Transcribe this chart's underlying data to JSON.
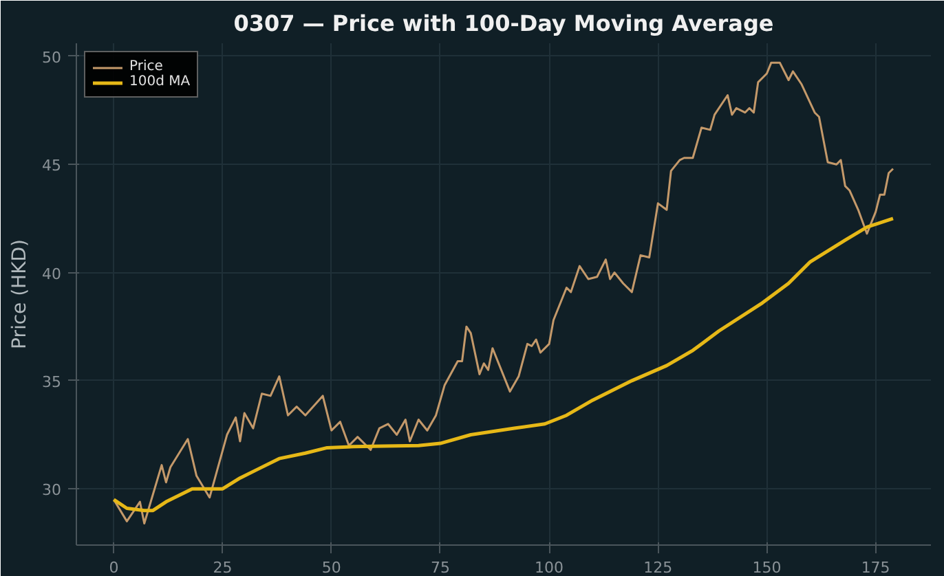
{
  "chart_data": {
    "type": "line",
    "title": "0307 — Price with 100-Day Moving Average",
    "ylabel": "Price (HKD)",
    "xlim": [
      -8.6,
      187.7
    ],
    "ylim": [
      27.4,
      50.6
    ],
    "xticks": [
      0,
      25,
      50,
      75,
      100,
      125,
      150,
      175
    ],
    "yticks": [
      30,
      35,
      40,
      45,
      50
    ],
    "grid": true,
    "legend": "top left",
    "series": [
      {
        "name": "Price",
        "color": "#c4996a",
        "x": [
          0,
          3,
          6,
          7,
          11,
          12,
          13,
          17,
          19,
          22,
          26,
          28,
          29,
          30,
          32,
          34,
          36,
          38,
          40,
          42,
          44,
          48,
          50,
          52,
          54,
          56,
          59,
          61,
          63,
          65,
          67,
          68,
          70,
          72,
          74,
          76,
          79,
          80,
          81,
          82,
          84,
          85,
          86,
          87,
          91,
          93,
          95,
          96,
          97,
          98,
          100,
          101,
          104,
          105,
          107,
          109,
          111,
          113,
          114,
          115,
          117,
          119,
          121,
          123,
          125,
          127,
          128,
          130,
          131,
          133,
          135,
          137,
          138,
          141,
          142,
          143,
          145,
          146,
          147,
          148,
          150,
          151,
          153,
          155,
          156,
          158,
          161,
          162,
          164,
          166,
          167,
          168,
          169,
          171,
          173,
          175,
          176,
          177,
          178,
          179
        ],
        "values": [
          29.5,
          28.5,
          29.4,
          28.4,
          31.1,
          30.3,
          31.0,
          32.3,
          30.6,
          29.6,
          32.5,
          33.3,
          32.2,
          33.5,
          32.8,
          34.4,
          34.3,
          35.2,
          33.4,
          33.8,
          33.4,
          34.3,
          32.7,
          33.1,
          32.0,
          32.4,
          31.8,
          32.8,
          33.0,
          32.5,
          33.2,
          32.2,
          33.2,
          32.7,
          33.4,
          34.8,
          35.9,
          35.9,
          37.5,
          37.2,
          35.3,
          35.8,
          35.5,
          36.5,
          34.5,
          35.2,
          36.7,
          36.6,
          36.9,
          36.3,
          36.7,
          37.8,
          39.3,
          39.1,
          40.3,
          39.7,
          39.8,
          40.6,
          39.7,
          40.0,
          39.5,
          39.1,
          40.8,
          40.7,
          43.2,
          42.9,
          44.7,
          45.2,
          45.3,
          45.3,
          46.7,
          46.6,
          47.3,
          48.2,
          47.3,
          47.6,
          47.4,
          47.6,
          47.4,
          48.8,
          49.2,
          49.7,
          49.7,
          48.9,
          49.3,
          48.7,
          47.4,
          47.2,
          45.1,
          45.0,
          45.2,
          44.0,
          43.8,
          42.9,
          41.8,
          42.8,
          43.6,
          43.6,
          44.6,
          44.8
        ]
      },
      {
        "name": "100d MA",
        "color": "#e6b817",
        "x": [
          0,
          3,
          7,
          9,
          12,
          16,
          18,
          22,
          25,
          29,
          33,
          38,
          44,
          49,
          55,
          62,
          70,
          75,
          82,
          92,
          99,
          104,
          110,
          119,
          127,
          133,
          139,
          149,
          155,
          160,
          168,
          173,
          179
        ],
        "values": [
          29.5,
          29.1,
          29.0,
          29.0,
          29.4,
          29.8,
          30.0,
          30.0,
          30.0,
          30.5,
          30.9,
          31.4,
          31.65,
          31.9,
          31.95,
          31.98,
          32.0,
          32.1,
          32.5,
          32.8,
          33.0,
          33.4,
          34.1,
          35.0,
          35.7,
          36.4,
          37.3,
          38.6,
          39.5,
          40.5,
          41.5,
          42.1,
          42.5
        ]
      }
    ]
  }
}
